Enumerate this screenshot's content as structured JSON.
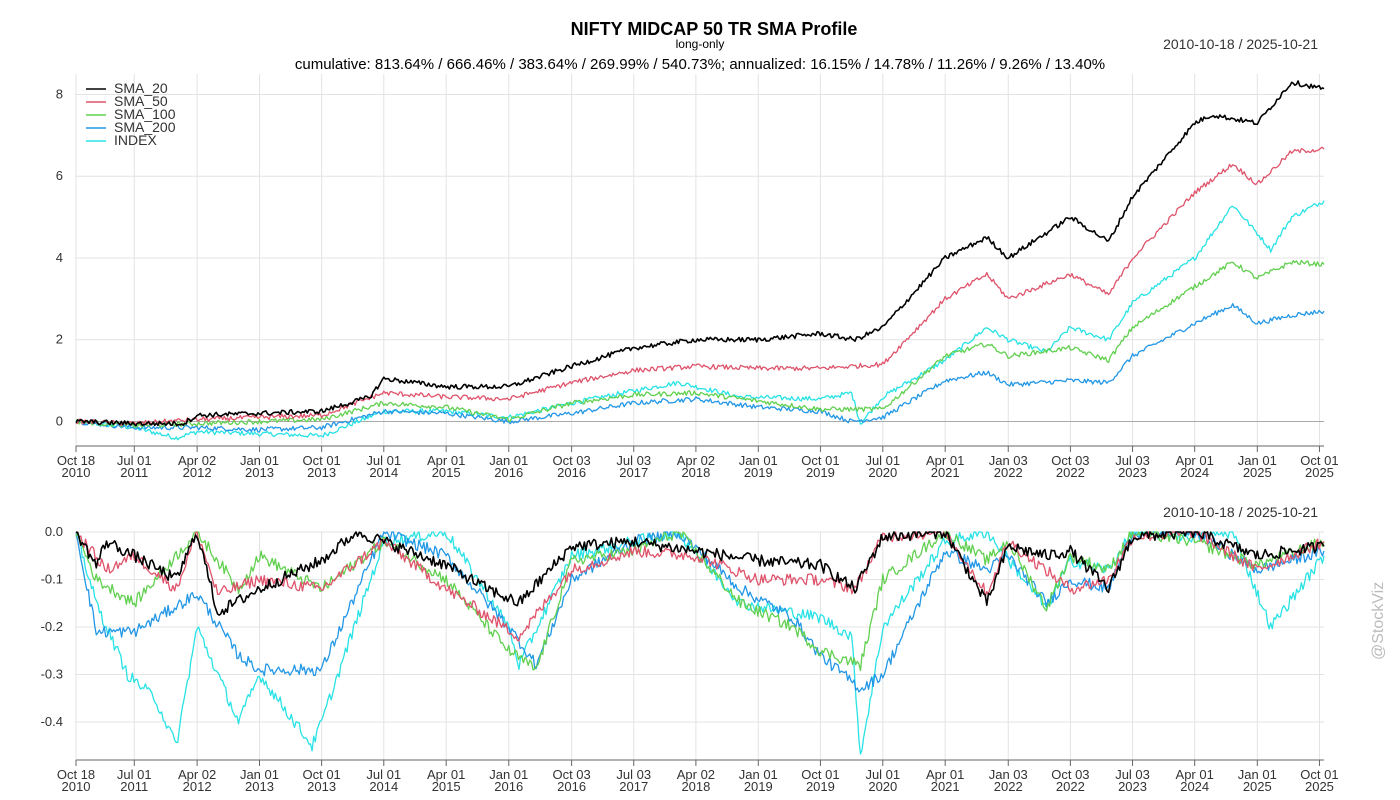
{
  "chart_data": [
    {
      "type": "line",
      "title": "NIFTY MIDCAP 50 TR SMA Profile",
      "subtitle": "long-only",
      "summary": "cumulative: 813.64% / 666.46% / 383.64% / 269.99% / 540.73%; annualized: 16.15% / 14.78% / 11.26% / 9.26% / 13.40%",
      "date_range": "2010-10-18 / 2025-10-21",
      "ylim": [
        -0.6,
        8.5
      ],
      "yticks": [
        0,
        2,
        4,
        6,
        8
      ],
      "grid": true,
      "legend_position": "top-left",
      "x_axis": {
        "start": "2010-10-18",
        "end": "2025-10-21",
        "ticks": [
          {
            "date": "2010-10-18",
            "line1": "Oct 18",
            "line2": "2010"
          },
          {
            "date": "2011-07-01",
            "line1": "Jul 01",
            "line2": "2011"
          },
          {
            "date": "2012-04-02",
            "line1": "Apr 02",
            "line2": "2012"
          },
          {
            "date": "2013-01-01",
            "line1": "Jan 01",
            "line2": "2013"
          },
          {
            "date": "2013-10-01",
            "line1": "Oct 01",
            "line2": "2013"
          },
          {
            "date": "2014-07-01",
            "line1": "Jul 01",
            "line2": "2014"
          },
          {
            "date": "2015-04-01",
            "line1": "Apr 01",
            "line2": "2015"
          },
          {
            "date": "2016-01-01",
            "line1": "Jan 01",
            "line2": "2016"
          },
          {
            "date": "2016-10-03",
            "line1": "Oct 03",
            "line2": "2016"
          },
          {
            "date": "2017-07-03",
            "line1": "Jul 03",
            "line2": "2017"
          },
          {
            "date": "2018-04-02",
            "line1": "Apr 02",
            "line2": "2018"
          },
          {
            "date": "2019-01-01",
            "line1": "Jan 01",
            "line2": "2019"
          },
          {
            "date": "2019-10-01",
            "line1": "Oct 01",
            "line2": "2019"
          },
          {
            "date": "2020-07-01",
            "line1": "Jul 01",
            "line2": "2020"
          },
          {
            "date": "2021-04-01",
            "line1": "Apr 01",
            "line2": "2021"
          },
          {
            "date": "2022-01-03",
            "line1": "Jan 03",
            "line2": "2022"
          },
          {
            "date": "2022-10-03",
            "line1": "Oct 03",
            "line2": "2022"
          },
          {
            "date": "2023-07-03",
            "line1": "Jul 03",
            "line2": "2023"
          },
          {
            "date": "2024-04-01",
            "line1": "Apr 01",
            "line2": "2024"
          },
          {
            "date": "2025-01-01",
            "line1": "Jan 01",
            "line2": "2025"
          },
          {
            "date": "2025-10-01",
            "line1": "Oct 01",
            "line2": "2025"
          }
        ]
      },
      "series": [
        {
          "name": "SMA_20",
          "color": "#000000",
          "x": [
            "2010-10-18",
            "2011-07-01",
            "2012-02-01",
            "2012-04-02",
            "2013-01-01",
            "2013-10-01",
            "2014-05-01",
            "2014-07-01",
            "2015-04-01",
            "2016-01-01",
            "2016-10-03",
            "2017-07-03",
            "2018-04-02",
            "2019-01-01",
            "2019-10-01",
            "2020-03-01",
            "2020-07-01",
            "2021-04-01",
            "2021-10-01",
            "2022-01-03",
            "2022-10-03",
            "2023-03-20",
            "2023-07-03",
            "2024-04-01",
            "2024-06-15",
            "2025-01-01",
            "2025-06-01",
            "2025-10-21"
          ],
          "values": [
            0,
            -0.05,
            -0.05,
            0.15,
            0.2,
            0.25,
            0.6,
            1.05,
            0.85,
            0.85,
            1.35,
            1.8,
            2.0,
            2.0,
            2.15,
            2.0,
            2.3,
            4.0,
            4.5,
            4.0,
            5.0,
            4.4,
            5.5,
            7.3,
            7.5,
            7.3,
            8.3,
            8.14
          ]
        },
        {
          "name": "SMA_50",
          "color": "#df536b",
          "x": [
            "2010-10-18",
            "2011-07-01",
            "2012-04-02",
            "2013-01-01",
            "2013-10-01",
            "2014-07-01",
            "2015-04-01",
            "2016-01-01",
            "2016-10-03",
            "2017-07-03",
            "2018-04-02",
            "2019-01-01",
            "2019-10-01",
            "2020-07-01",
            "2021-04-01",
            "2021-10-01",
            "2022-01-03",
            "2022-10-03",
            "2023-03-20",
            "2023-07-03",
            "2024-04-01",
            "2024-09-15",
            "2025-01-01",
            "2025-06-01",
            "2025-10-21"
          ],
          "values": [
            0,
            -0.05,
            0.05,
            0.1,
            0.15,
            0.7,
            0.6,
            0.55,
            0.95,
            1.25,
            1.35,
            1.3,
            1.3,
            1.4,
            3.0,
            3.6,
            3.0,
            3.6,
            3.1,
            4.0,
            5.6,
            6.3,
            5.8,
            6.6,
            6.66
          ]
        },
        {
          "name": "SMA_100",
          "color": "#61d04f",
          "x": [
            "2010-10-18",
            "2011-07-01",
            "2012-04-02",
            "2013-01-01",
            "2013-10-01",
            "2014-07-01",
            "2015-04-01",
            "2016-01-01",
            "2016-10-03",
            "2017-07-03",
            "2018-04-02",
            "2019-01-01",
            "2019-10-01",
            "2020-07-01",
            "2021-04-01",
            "2021-10-01",
            "2022-01-03",
            "2022-10-03",
            "2023-03-20",
            "2023-07-03",
            "2024-04-01",
            "2024-09-15",
            "2025-01-01",
            "2025-06-01",
            "2025-10-21"
          ],
          "values": [
            0,
            -0.1,
            -0.05,
            0.0,
            0.05,
            0.45,
            0.35,
            0.05,
            0.45,
            0.65,
            0.7,
            0.5,
            0.3,
            0.3,
            1.6,
            1.9,
            1.6,
            1.8,
            1.5,
            2.3,
            3.3,
            3.9,
            3.5,
            3.9,
            3.84
          ]
        },
        {
          "name": "SMA_200",
          "color": "#2297e6",
          "x": [
            "2010-10-18",
            "2011-07-01",
            "2012-04-02",
            "2013-01-01",
            "2013-10-01",
            "2014-07-01",
            "2015-04-01",
            "2016-01-01",
            "2016-10-03",
            "2017-07-03",
            "2018-04-02",
            "2019-01-01",
            "2019-10-01",
            "2020-02-15",
            "2020-07-01",
            "2021-04-01",
            "2021-10-01",
            "2022-01-03",
            "2022-10-03",
            "2023-03-20",
            "2023-07-03",
            "2024-04-01",
            "2024-09-15",
            "2025-01-01",
            "2025-06-01",
            "2025-10-21"
          ],
          "values": [
            0,
            -0.15,
            -0.15,
            -0.2,
            -0.15,
            0.25,
            0.2,
            0.0,
            0.2,
            0.45,
            0.55,
            0.35,
            0.25,
            0.0,
            0.1,
            1.0,
            1.2,
            0.9,
            1.0,
            0.95,
            1.6,
            2.4,
            2.85,
            2.4,
            2.6,
            2.7
          ]
        },
        {
          "name": "INDEX",
          "color": "#28e2e5",
          "x": [
            "2010-10-18",
            "2011-07-01",
            "2012-01-01",
            "2012-04-02",
            "2013-01-01",
            "2013-10-01",
            "2014-07-01",
            "2015-04-01",
            "2016-01-01",
            "2016-10-03",
            "2017-07-03",
            "2018-01-15",
            "2018-10-15",
            "2019-10-01",
            "2020-02-15",
            "2020-03-25",
            "2020-07-01",
            "2021-04-01",
            "2021-10-01",
            "2022-01-03",
            "2022-06-20",
            "2022-10-03",
            "2023-03-20",
            "2023-07-03",
            "2024-04-01",
            "2024-09-15",
            "2025-01-01",
            "2025-03-01",
            "2025-06-01",
            "2025-10-21"
          ],
          "values": [
            0,
            -0.15,
            -0.4,
            -0.25,
            -0.3,
            -0.35,
            0.25,
            0.25,
            0.1,
            0.45,
            0.75,
            0.95,
            0.6,
            0.55,
            0.7,
            -0.05,
            0.6,
            1.5,
            2.3,
            2.0,
            1.7,
            2.3,
            2.0,
            2.9,
            4.0,
            5.3,
            4.6,
            4.2,
            5.0,
            5.4
          ]
        }
      ]
    },
    {
      "type": "line",
      "title": "",
      "date_range": "2010-10-18 / 2025-10-21",
      "ylim": [
        -0.48,
        0.0
      ],
      "yticks": [
        0.0,
        -0.1,
        -0.2,
        -0.3,
        -0.4
      ],
      "ytick_labels": [
        "0.0",
        "-0.1",
        "-0.2",
        "-0.3",
        "-0.4"
      ],
      "grid": true,
      "series": [
        {
          "name": "SMA_20",
          "color": "#000000",
          "x": [
            "2010-10-18",
            "2011-01-15",
            "2011-03-01",
            "2011-07-01",
            "2012-01-01",
            "2012-04-02",
            "2012-07-01",
            "2013-01-01",
            "2013-10-01",
            "2014-03-01",
            "2014-07-01",
            "2015-04-01",
            "2015-10-01",
            "2016-02-15",
            "2016-10-03",
            "2017-07-03",
            "2018-04-02",
            "2019-01-01",
            "2019-10-01",
            "2020-03-01",
            "2020-07-01",
            "2021-04-01",
            "2021-10-01",
            "2022-01-03",
            "2022-06-20",
            "2022-10-03",
            "2023-03-20",
            "2023-07-03",
            "2024-04-01",
            "2025-01-01",
            "2025-10-21"
          ],
          "values": [
            0,
            -0.07,
            -0.02,
            -0.05,
            -0.1,
            0,
            -0.17,
            -0.12,
            -0.06,
            0,
            -0.02,
            -0.07,
            -0.12,
            -0.15,
            -0.03,
            -0.02,
            -0.04,
            -0.06,
            -0.07,
            -0.12,
            -0.01,
            0,
            -0.15,
            -0.03,
            -0.05,
            -0.04,
            -0.12,
            -0.01,
            0,
            -0.05,
            -0.03
          ]
        },
        {
          "name": "SMA_50",
          "color": "#df536b",
          "x": [
            "2010-10-18",
            "2011-03-01",
            "2011-07-01",
            "2012-01-01",
            "2012-04-02",
            "2012-07-01",
            "2013-01-01",
            "2013-10-01",
            "2014-07-01",
            "2015-04-01",
            "2016-02-15",
            "2016-10-03",
            "2017-07-03",
            "2018-04-02",
            "2019-01-01",
            "2019-10-01",
            "2020-03-01",
            "2020-07-01",
            "2021-04-01",
            "2021-10-01",
            "2022-01-03",
            "2022-10-03",
            "2023-03-20",
            "2023-07-03",
            "2024-04-01",
            "2025-01-01",
            "2025-10-21"
          ],
          "values": [
            0,
            -0.08,
            -0.05,
            -0.12,
            0,
            -0.13,
            -0.1,
            -0.12,
            -0.02,
            -0.12,
            -0.22,
            -0.08,
            -0.04,
            -0.05,
            -0.1,
            -0.1,
            -0.12,
            -0.01,
            0,
            -0.13,
            -0.02,
            -0.12,
            -0.1,
            -0.01,
            0,
            -0.08,
            -0.02
          ]
        },
        {
          "name": "SMA_100",
          "color": "#61d04f",
          "x": [
            "2010-10-18",
            "2011-01-15",
            "2011-07-01",
            "2012-04-02",
            "2012-10-01",
            "2013-01-01",
            "2013-10-01",
            "2014-07-01",
            "2015-04-01",
            "2016-01-01",
            "2016-05-01",
            "2016-10-03",
            "2017-07-03",
            "2018-01-15",
            "2018-10-15",
            "2019-06-01",
            "2019-10-01",
            "2020-03-25",
            "2020-07-01",
            "2021-04-01",
            "2021-10-01",
            "2022-01-03",
            "2022-06-20",
            "2022-10-03",
            "2023-03-20",
            "2023-07-03",
            "2024-04-01",
            "2025-01-01",
            "2025-10-21"
          ],
          "values": [
            0,
            -0.1,
            -0.15,
            0,
            -0.12,
            -0.05,
            -0.12,
            -0.02,
            -0.1,
            -0.25,
            -0.29,
            -0.06,
            -0.04,
            0,
            -0.15,
            -0.2,
            -0.25,
            -0.28,
            -0.1,
            0,
            -0.06,
            -0.02,
            -0.16,
            -0.05,
            -0.08,
            0,
            -0.02,
            -0.07,
            -0.02
          ]
        },
        {
          "name": "SMA_200",
          "color": "#2297e6",
          "x": [
            "2010-10-18",
            "2011-01-15",
            "2011-07-01",
            "2012-04-02",
            "2012-10-01",
            "2013-01-01",
            "2013-10-01",
            "2014-07-01",
            "2015-04-01",
            "2016-01-01",
            "2016-05-01",
            "2016-10-03",
            "2017-07-03",
            "2018-01-15",
            "2018-10-15",
            "2019-06-01",
            "2019-10-01",
            "2020-03-25",
            "2020-07-01",
            "2021-04-01",
            "2021-10-01",
            "2022-01-03",
            "2022-06-20",
            "2022-10-03",
            "2023-03-20",
            "2023-07-03",
            "2024-04-01",
            "2025-01-01",
            "2025-10-21"
          ],
          "values": [
            0,
            -0.21,
            -0.21,
            -0.13,
            -0.26,
            -0.29,
            -0.29,
            0,
            -0.05,
            -0.2,
            -0.28,
            -0.1,
            -0.02,
            0,
            -0.12,
            -0.18,
            -0.26,
            -0.33,
            -0.3,
            -0.04,
            -0.08,
            -0.05,
            -0.15,
            -0.1,
            -0.12,
            0,
            0,
            -0.08,
            -0.04
          ]
        },
        {
          "name": "INDEX",
          "color": "#28e2e5",
          "x": [
            "2010-10-18",
            "2011-01-15",
            "2011-06-01",
            "2011-10-01",
            "2012-01-01",
            "2012-04-02",
            "2012-10-01",
            "2013-01-01",
            "2013-08-20",
            "2013-10-01",
            "2014-07-01",
            "2015-04-01",
            "2016-01-01",
            "2016-02-15",
            "2016-10-03",
            "2017-07-03",
            "2018-01-15",
            "2018-10-15",
            "2019-10-01",
            "2020-02-15",
            "2020-03-25",
            "2020-07-01",
            "2021-04-01",
            "2021-10-01",
            "2022-06-20",
            "2022-10-03",
            "2023-03-20",
            "2023-07-03",
            "2024-04-01",
            "2024-09-15",
            "2025-03-01",
            "2025-10-21"
          ],
          "values": [
            0,
            -0.15,
            -0.3,
            -0.35,
            -0.45,
            -0.2,
            -0.4,
            -0.3,
            -0.45,
            -0.4,
            -0.02,
            0,
            -0.2,
            -0.28,
            -0.05,
            -0.02,
            0,
            -0.15,
            -0.18,
            -0.22,
            -0.47,
            -0.2,
            -0.02,
            0,
            -0.16,
            -0.06,
            -0.08,
            0,
            -0.01,
            0,
            -0.2,
            -0.05
          ]
        }
      ]
    }
  ],
  "watermark": "@StockViz"
}
